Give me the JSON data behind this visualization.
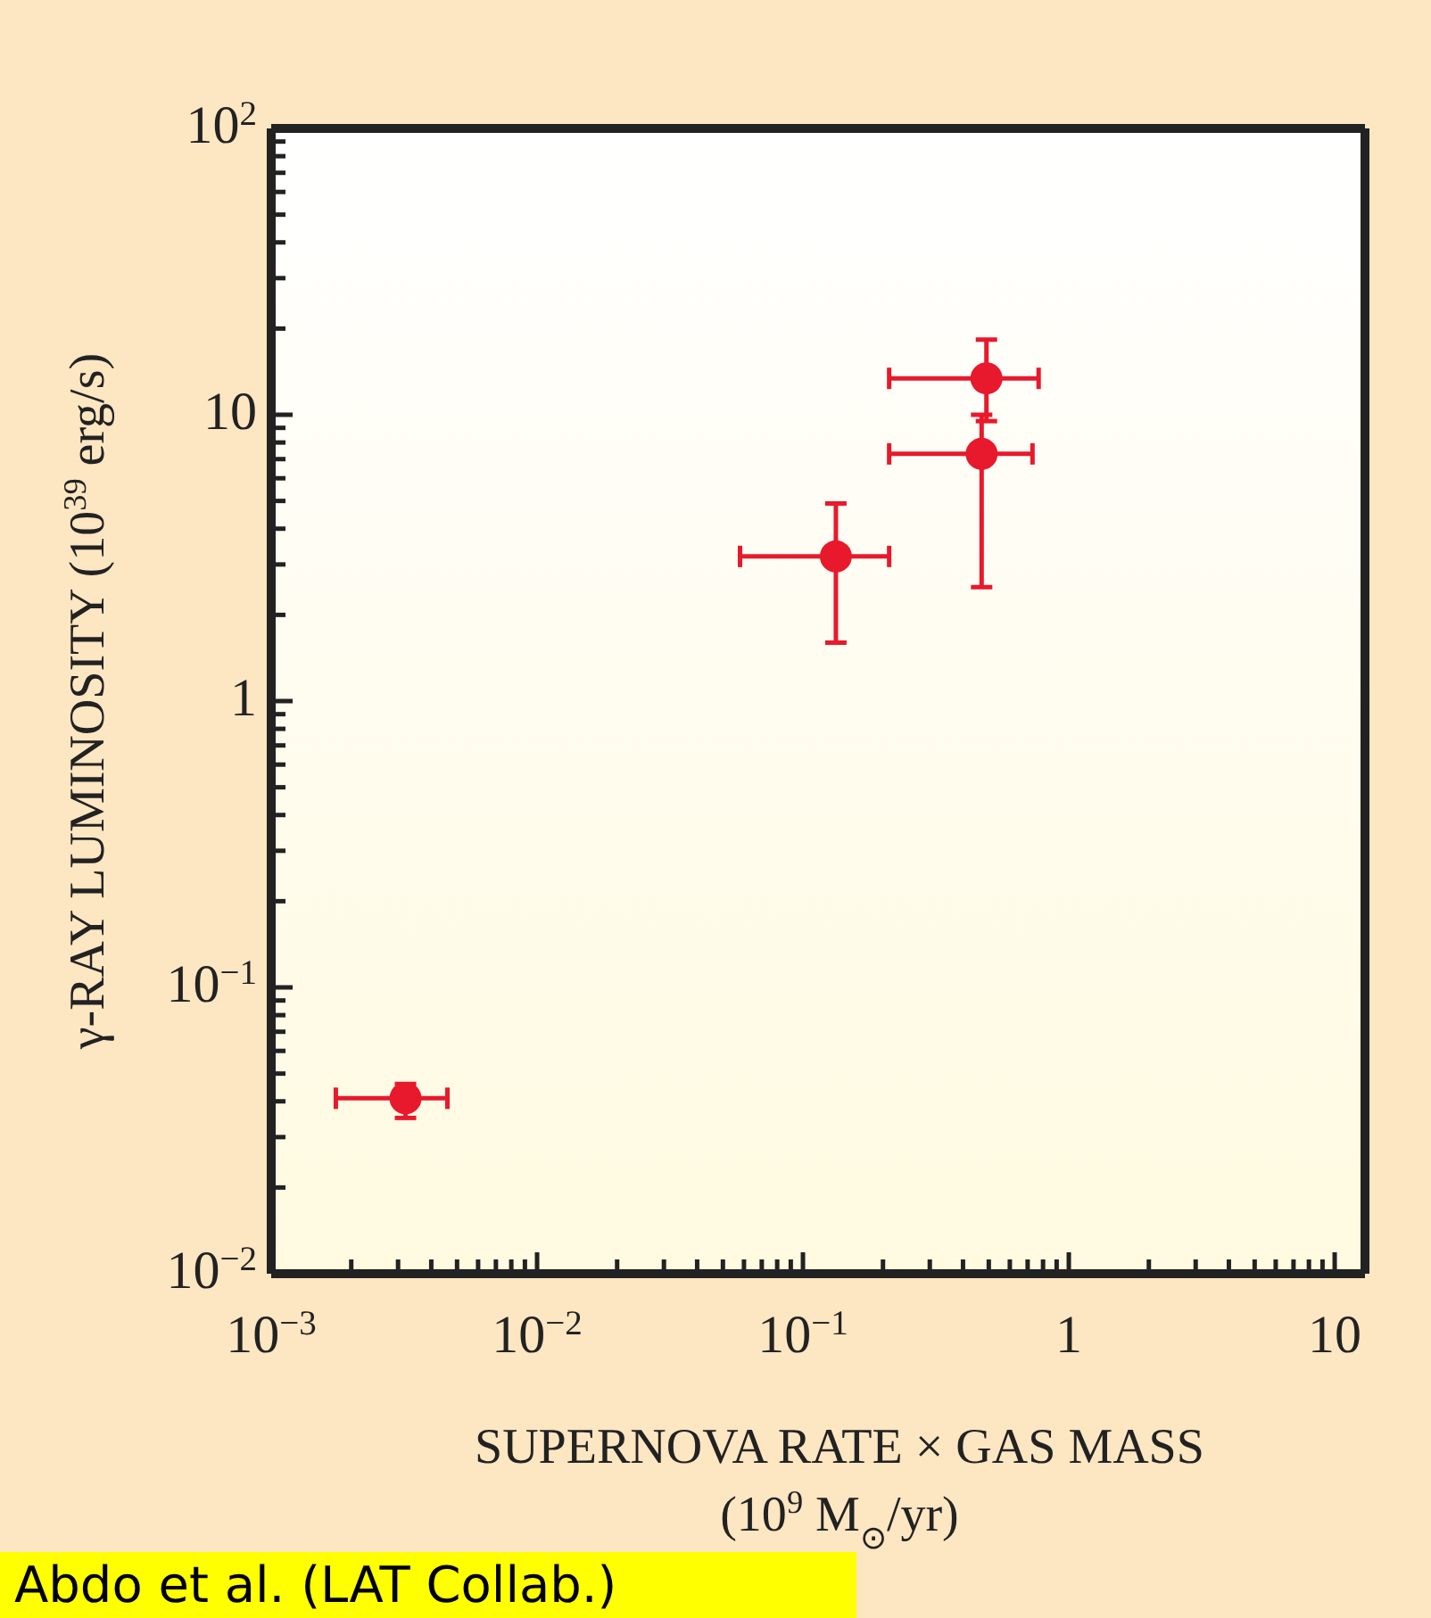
{
  "chart_data": {
    "type": "scatter",
    "xlabel": "SUPERNOVA RATE × GAS MASS\n(10$^{9}$ M$_{⊙}$/yr)",
    "ylabel": "γ-RAY LUMINOSITY (10$^{39}$ erg/s)",
    "log": "xy",
    "marker": "circle",
    "x": [
      0.0032,
      0.133,
      0.49,
      0.47
    ],
    "series": [
      {
        "color": "#e8192c",
        "values": [
          0.041,
          3.2,
          13.4,
          7.3
        ],
        "xerrors": [
          [
            0.00175,
            0.0046
          ],
          [
            0.058,
            0.211
          ],
          [
            0.211,
            0.77
          ],
          [
            0.211,
            0.73
          ]
        ],
        "errors": [
          [
            0.035,
            0.046
          ],
          [
            1.6,
            4.9
          ],
          [
            9.5,
            18.3
          ],
          [
            2.5,
            10
          ]
        ]
      }
    ],
    "xlim": [
      0.001,
      13
    ],
    "ylim": [
      0.01,
      100
    ],
    "xticks": [
      {
        "value": 0.001,
        "label": "10$^{−3}$"
      },
      {
        "value": 0.002,
        "label": null
      },
      {
        "value": 0.003,
        "label": null
      },
      {
        "value": 0.004,
        "label": null
      },
      {
        "value": 0.005,
        "label": null
      },
      {
        "value": 0.006,
        "label": null
      },
      {
        "value": 0.007,
        "label": null
      },
      {
        "value": 0.008,
        "label": null
      },
      {
        "value": 0.009,
        "label": null
      },
      {
        "value": 0.01,
        "label": "10$^{−2}$"
      },
      {
        "value": 0.02,
        "label": null
      },
      {
        "value": 0.03,
        "label": null
      },
      {
        "value": 0.04,
        "label": null
      },
      {
        "value": 0.05,
        "label": null
      },
      {
        "value": 0.06,
        "label": null
      },
      {
        "value": 0.07,
        "label": null
      },
      {
        "value": 0.08,
        "label": null
      },
      {
        "value": 0.09,
        "label": null
      },
      {
        "value": 0.1,
        "label": "10$^{−1}$"
      },
      {
        "value": 0.2,
        "label": null
      },
      {
        "value": 0.3,
        "label": null
      },
      {
        "value": 0.4,
        "label": null
      },
      {
        "value": 0.5,
        "label": null
      },
      {
        "value": 0.6,
        "label": null
      },
      {
        "value": 0.7,
        "label": null
      },
      {
        "value": 0.8,
        "label": null
      },
      {
        "value": 0.9,
        "label": null
      },
      1,
      {
        "value": 2,
        "label": null
      },
      {
        "value": 3,
        "label": null
      },
      {
        "value": 4,
        "label": null
      },
      {
        "value": 5,
        "label": null
      },
      {
        "value": 6,
        "label": null
      },
      {
        "value": 7,
        "label": null
      },
      {
        "value": 8,
        "label": null
      },
      {
        "value": 9,
        "label": null
      },
      10
    ],
    "yticks": [
      {
        "value": 0.01,
        "label": "10$^{−2}$"
      },
      {
        "value": 0.02,
        "label": null
      },
      {
        "value": 0.03,
        "label": null
      },
      {
        "value": 0.04,
        "label": null
      },
      {
        "value": 0.05,
        "label": null
      },
      {
        "value": 0.06,
        "label": null
      },
      {
        "value": 0.07,
        "label": null
      },
      {
        "value": 0.08,
        "label": null
      },
      {
        "value": 0.09,
        "label": null
      },
      {
        "value": 0.1,
        "label": "10$^{−1}$"
      },
      {
        "value": 0.2,
        "label": null
      },
      {
        "value": 0.3,
        "label": null
      },
      {
        "value": 0.4,
        "label": null
      },
      {
        "value": 0.5,
        "label": null
      },
      {
        "value": 0.6,
        "label": null
      },
      {
        "value": 0.7,
        "label": null
      },
      {
        "value": 0.8,
        "label": null
      },
      {
        "value": 0.9,
        "label": null
      },
      1,
      {
        "value": 2,
        "label": null
      },
      {
        "value": 3,
        "label": null
      },
      {
        "value": 4,
        "label": null
      },
      {
        "value": 5,
        "label": null
      },
      {
        "value": 6,
        "label": null
      },
      {
        "value": 7,
        "label": null
      },
      {
        "value": 8,
        "label": null
      },
      {
        "value": 9,
        "label": null
      },
      10,
      {
        "value": 20,
        "label": null
      },
      {
        "value": 30,
        "label": null
      },
      {
        "value": 40,
        "label": null
      },
      {
        "value": 50,
        "label": null
      },
      {
        "value": 60,
        "label": null
      },
      {
        "value": 70,
        "label": null
      },
      {
        "value": 80,
        "label": null
      },
      {
        "value": 90,
        "label": null
      },
      {
        "value": 100,
        "label": "10$^{2}$"
      }
    ],
    "annotations": [
      "Abdo et al. (LAT Collab.)"
    ]
  }
}
